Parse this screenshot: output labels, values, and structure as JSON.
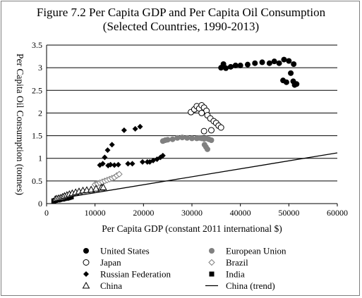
{
  "chart_data": {
    "type": "scatter",
    "title": "Figure 7.2 Per Capita GDP and Per Capita Oil Consumption",
    "subtitle": "(Selected Countries, 1990-2013)",
    "xlabel": "Per Capita GDP (constant 2011 international $)",
    "ylabel": "Per Capita Oil Consumption (tonnes)",
    "xlim": [
      0,
      60000
    ],
    "ylim": [
      0,
      3.5
    ],
    "xticks": [
      "0",
      "10000",
      "20000",
      "30000",
      "40000",
      "50000",
      "60000"
    ],
    "yticks": [
      "0",
      "0.5",
      "1",
      "1.5",
      "2",
      "2.5",
      "3",
      "3.5"
    ],
    "grid": "horizontal",
    "legend_position": "bottom",
    "series": [
      {
        "name": "United States",
        "marker": "circle-filled",
        "color": "#000000",
        "points": [
          [
            36000,
            3.0
          ],
          [
            36500,
            3.08
          ],
          [
            37000,
            2.99
          ],
          [
            38000,
            3.02
          ],
          [
            39000,
            3.05
          ],
          [
            40000,
            3.05
          ],
          [
            41500,
            3.07
          ],
          [
            43000,
            3.1
          ],
          [
            44500,
            3.12
          ],
          [
            46000,
            3.1
          ],
          [
            47000,
            3.14
          ],
          [
            48000,
            3.1
          ],
          [
            49000,
            3.18
          ],
          [
            50000,
            3.15
          ],
          [
            51000,
            3.08
          ],
          [
            48800,
            2.72
          ],
          [
            49500,
            2.68
          ],
          [
            50400,
            2.88
          ],
          [
            50900,
            2.7
          ],
          [
            51200,
            2.62
          ],
          [
            51600,
            2.64
          ]
        ]
      },
      {
        "name": "European Union",
        "marker": "circle-filled",
        "color": "#808080",
        "points": [
          [
            24000,
            1.38
          ],
          [
            24500,
            1.4
          ],
          [
            25000,
            1.41
          ],
          [
            26000,
            1.42
          ],
          [
            27000,
            1.45
          ],
          [
            28000,
            1.46
          ],
          [
            29000,
            1.45
          ],
          [
            30000,
            1.44
          ],
          [
            31000,
            1.44
          ],
          [
            31500,
            1.45
          ],
          [
            32000,
            1.44
          ],
          [
            32500,
            1.43
          ],
          [
            33000,
            1.44
          ],
          [
            33500,
            1.42
          ],
          [
            34000,
            1.4
          ],
          [
            32600,
            1.3
          ],
          [
            32900,
            1.25
          ],
          [
            33200,
            1.2
          ]
        ]
      },
      {
        "name": "Japan",
        "marker": "circle-open",
        "color": "#000000",
        "points": [
          [
            29800,
            2.02
          ],
          [
            30500,
            2.08
          ],
          [
            31000,
            2.15
          ],
          [
            31500,
            2.1
          ],
          [
            32000,
            2.17
          ],
          [
            32500,
            2.12
          ],
          [
            33000,
            2.05
          ],
          [
            32000,
            2.0
          ],
          [
            33200,
            1.95
          ],
          [
            33800,
            1.88
          ],
          [
            34500,
            1.82
          ],
          [
            35000,
            1.78
          ],
          [
            35500,
            1.72
          ],
          [
            36000,
            1.68
          ],
          [
            34000,
            1.62
          ],
          [
            32500,
            1.6
          ]
        ]
      },
      {
        "name": "Brazil",
        "marker": "diamond-open",
        "color": "#808080",
        "points": [
          [
            10000,
            0.42
          ],
          [
            10500,
            0.44
          ],
          [
            11000,
            0.46
          ],
          [
            11500,
            0.48
          ],
          [
            12000,
            0.5
          ],
          [
            12500,
            0.52
          ],
          [
            13000,
            0.54
          ],
          [
            13500,
            0.56
          ],
          [
            14000,
            0.58
          ],
          [
            14500,
            0.62
          ],
          [
            15000,
            0.65
          ]
        ]
      },
      {
        "name": "Russian Federation",
        "marker": "diamond-filled",
        "color": "#000000",
        "points": [
          [
            11000,
            0.85
          ],
          [
            11600,
            0.88
          ],
          [
            12000,
            1.02
          ],
          [
            12600,
            1.18
          ],
          [
            13500,
            1.3
          ],
          [
            14000,
            0.85
          ],
          [
            14800,
            0.86
          ],
          [
            16000,
            1.62
          ],
          [
            16800,
            0.88
          ],
          [
            17700,
            0.88
          ],
          [
            18300,
            1.65
          ],
          [
            19300,
            1.7
          ],
          [
            19800,
            0.92
          ],
          [
            20800,
            0.92
          ],
          [
            21300,
            0.92
          ],
          [
            22000,
            0.95
          ],
          [
            22800,
            0.98
          ],
          [
            23500,
            1.02
          ],
          [
            24000,
            1.06
          ],
          [
            12700,
            0.84
          ],
          [
            13200,
            0.86
          ]
        ]
      },
      {
        "name": "India",
        "marker": "square-filled",
        "color": "#000000",
        "points": [
          [
            1500,
            0.06
          ],
          [
            1800,
            0.07
          ],
          [
            2100,
            0.08
          ],
          [
            2400,
            0.08
          ],
          [
            2700,
            0.09
          ],
          [
            3000,
            0.1
          ],
          [
            3300,
            0.1
          ],
          [
            3600,
            0.11
          ],
          [
            3900,
            0.12
          ],
          [
            4200,
            0.12
          ],
          [
            4500,
            0.13
          ],
          [
            4800,
            0.14
          ],
          [
            5100,
            0.15
          ]
        ]
      },
      {
        "name": "China",
        "marker": "triangle-open",
        "color": "#000000",
        "points": [
          [
            1800,
            0.1
          ],
          [
            2100,
            0.11
          ],
          [
            2500,
            0.12
          ],
          [
            2900,
            0.13
          ],
          [
            3300,
            0.15
          ],
          [
            3700,
            0.17
          ],
          [
            4200,
            0.19
          ],
          [
            4700,
            0.21
          ],
          [
            5300,
            0.23
          ],
          [
            6000,
            0.25
          ],
          [
            6700,
            0.27
          ],
          [
            7500,
            0.29
          ],
          [
            8300,
            0.3
          ],
          [
            9200,
            0.31
          ],
          [
            10200,
            0.33
          ],
          [
            11300,
            0.35
          ],
          [
            11700,
            0.36
          ]
        ]
      },
      {
        "name": "China (trend)",
        "marker": "line",
        "color": "#000000",
        "line": [
          [
            2000,
            0.1
          ],
          [
            60000,
            1.12
          ]
        ]
      }
    ]
  },
  "legend": {
    "items": [
      {
        "label": "United States",
        "marker": "circle-filled"
      },
      {
        "label": "European Union",
        "marker": "circle-filled-gray"
      },
      {
        "label": "Japan",
        "marker": "circle-open"
      },
      {
        "label": "Brazil",
        "marker": "diamond-open-gray"
      },
      {
        "label": "Russian Federation",
        "marker": "diamond-filled"
      },
      {
        "label": "India",
        "marker": "square-filled"
      },
      {
        "label": "China",
        "marker": "triangle-open"
      },
      {
        "label": "China (trend)",
        "marker": "line"
      }
    ]
  }
}
